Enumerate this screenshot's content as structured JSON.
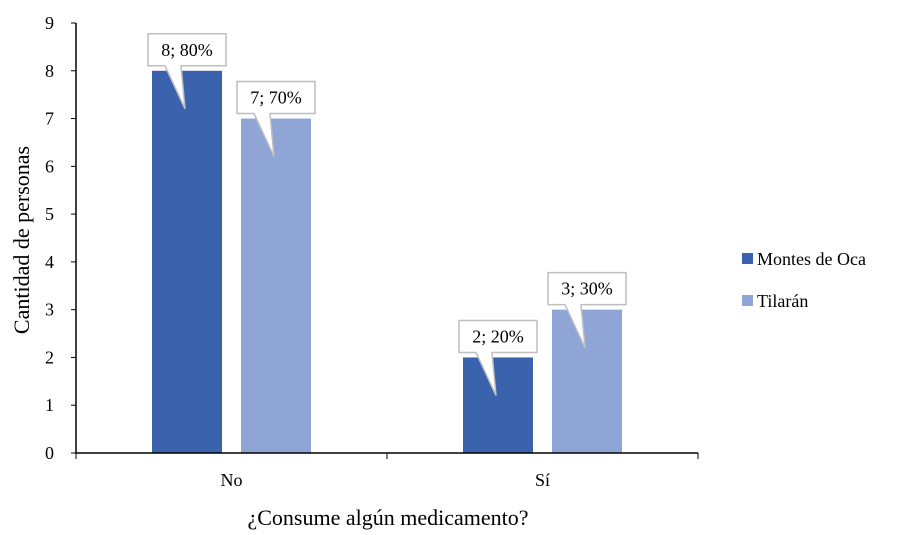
{
  "chart_data": {
    "type": "bar",
    "title": "",
    "xlabel": "¿Consume algún medicamento?",
    "ylabel": "Cantidad de personas",
    "categories": [
      "No",
      "Sí"
    ],
    "series": [
      {
        "name": "Montes de Oca",
        "values": [
          8,
          2
        ],
        "labels": [
          "8; 80%",
          "2; 20%"
        ],
        "color": "#3b63ad"
      },
      {
        "name": "Tilarán",
        "values": [
          7,
          3
        ],
        "labels": [
          "7; 70%",
          "3; 30%"
        ],
        "color": "#8fa5d5"
      }
    ],
    "ylim": [
      0,
      9
    ],
    "yticks": [
      "0",
      "1",
      "2",
      "3",
      "4",
      "5",
      "6",
      "7",
      "8",
      "9"
    ],
    "grid": false,
    "legend_position": "right"
  }
}
